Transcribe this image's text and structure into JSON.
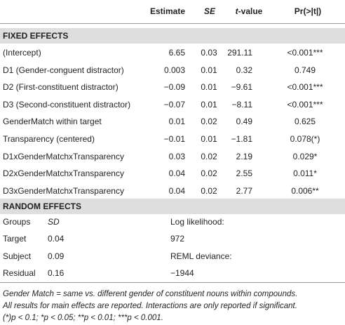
{
  "header": {
    "columns": [
      "Estimate",
      "SE",
      "t",
      "-value",
      "Pr(>|t|)"
    ]
  },
  "fixed_effects": {
    "title": "FIXED EFFECTS",
    "rows": [
      [
        "(Intercept)",
        "6.65",
        "0.03",
        "291.11",
        "<0.001***"
      ],
      [
        "D1 (Gender-conguent distractor)",
        "0.003",
        "0.01",
        "0.32",
        "0.749"
      ],
      [
        "D2 (First-constituent distractor)",
        "−0.09",
        "0.01",
        "−9.61",
        "<0.001***"
      ],
      [
        "D3 (Second-constituent distractor)",
        "−0.07",
        "0.01",
        "−8.11",
        "<0.001***"
      ],
      [
        "GenderMatch within target",
        "0.01",
        "0.02",
        "0.49",
        "0.625"
      ],
      [
        "Transparency (centered)",
        "−0.01",
        "0.01",
        "−1.81",
        "0.078(*)"
      ],
      [
        "D1xGenderMatchxTransparency",
        "0.03",
        "0.02",
        "2.19",
        "0.029*"
      ],
      [
        "D2xGenderMatchxTransparency",
        "0.04",
        "0.02",
        "2.55",
        "0.011*"
      ],
      [
        "D3xGenderMatchxTransparency",
        "0.04",
        "0.02",
        "2.77",
        "0.006**"
      ]
    ]
  },
  "random_effects": {
    "title": "RANDOM EFFECTS",
    "rows": [
      [
        "Groups",
        "SD",
        "Log likelihood:"
      ],
      [
        "Target",
        "0.04",
        "972"
      ],
      [
        "Subject",
        "0.09",
        "REML deviance:"
      ],
      [
        "Residual",
        "0.16",
        "−1944"
      ]
    ]
  },
  "footnotes": [
    "Gender Match = same vs. different gender of constituent nouns within compounds.",
    "All results for main effects are reported. Interactions are only reported if significant.",
    "(*)p < 0.1; *p < 0.05; **p < 0.01; ***p < 0.001."
  ]
}
